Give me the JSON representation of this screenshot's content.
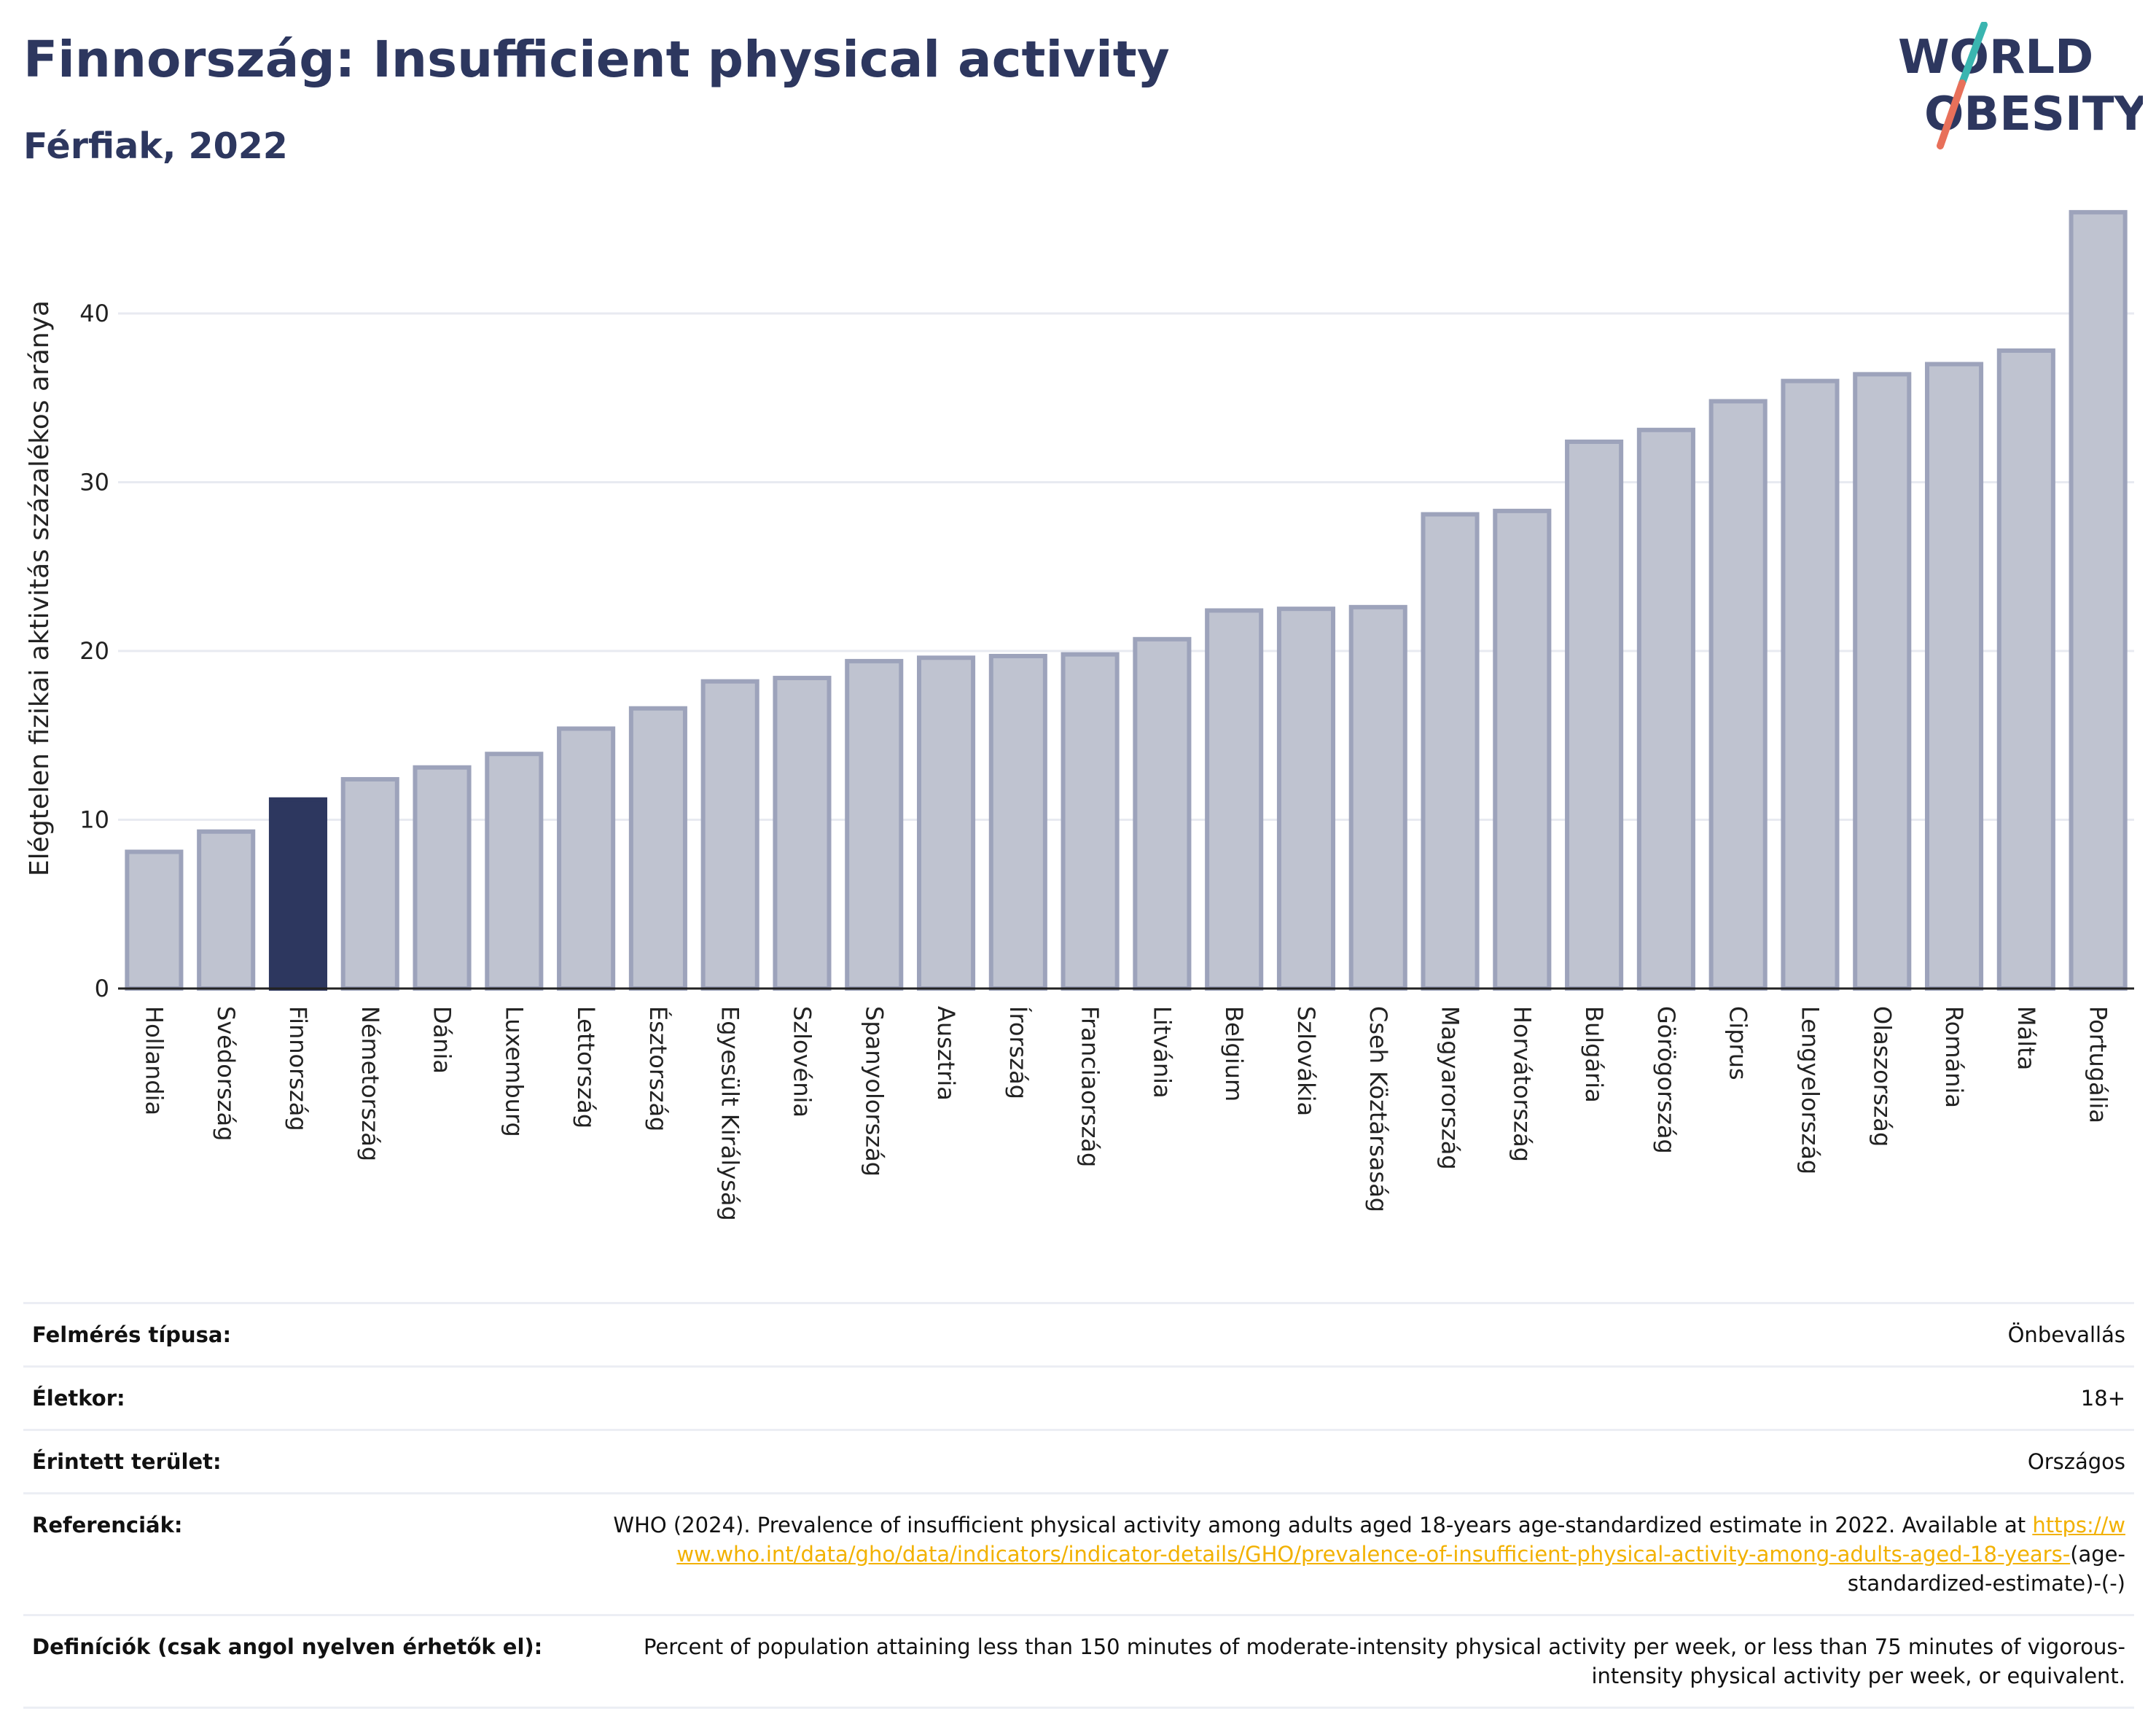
{
  "header": {
    "title": "Finnország: Insufficient physical activity",
    "subtitle": "Férfiak, 2022"
  },
  "logo": {
    "line1": "WORLD",
    "line2": "OBESITY",
    "colors": {
      "text": "#2d375f",
      "slash_top": "#3ab5b0",
      "slash_bottom": "#e8705a"
    }
  },
  "chart_data": {
    "type": "bar",
    "title": "",
    "xlabel": "",
    "ylabel": "Elégtelen fizikai aktivitás százalékos aránya",
    "ylim": [
      0,
      47
    ],
    "yticks": [
      0,
      10,
      20,
      30,
      40
    ],
    "grid": true,
    "highlight_category": "Finnország",
    "colors": {
      "bar": "#bfc3d0",
      "bar_edge": "#9da3bb",
      "highlight": "#2d375f",
      "grid": "#e8eaf1"
    },
    "categories": [
      "Hollandia",
      "Svédország",
      "Finnország",
      "Németország",
      "Dánia",
      "Luxemburg",
      "Lettország",
      "Észtország",
      "Egyesült Királyság",
      "Szlovénia",
      "Spanyolország",
      "Ausztria",
      "Írország",
      "Franciaország",
      "Litvánia",
      "Belgium",
      "Szlovákia",
      "Cseh Köztársaság",
      "Magyarország",
      "Horvátország",
      "Bulgária",
      "Görögország",
      "Ciprus",
      "Lengyelország",
      "Olaszország",
      "Románia",
      "Málta",
      "Portugália"
    ],
    "values": [
      8.1,
      9.3,
      11.2,
      12.4,
      13.1,
      13.9,
      15.4,
      16.6,
      18.2,
      18.4,
      19.4,
      19.6,
      19.7,
      19.8,
      20.7,
      22.4,
      22.5,
      22.6,
      28.1,
      28.3,
      32.4,
      33.1,
      34.8,
      36.0,
      36.4,
      37.0,
      37.8,
      46.0
    ]
  },
  "info": {
    "survey_label": "Felmérés típusa:",
    "survey_value": "Önbevallás",
    "age_label": "Életkor:",
    "age_value": "18+",
    "area_label": "Érintett terület:",
    "area_value": "Országos",
    "ref_label": "Referenciák:",
    "ref_text": "WHO (2024). Prevalence of insufficient physical activity among adults aged 18-years age-standardized estimate in 2022. Available at",
    "ref_link": "https://www.who.int/data/gho/data/indicators/indicator-details/GHO/prevalence-of-insufficient-physical-activity-among-adults-aged-18-years-",
    "ref_tail": "(age-standardized-estimate)-(-)",
    "def_label": "Definíciók (csak angol nyelven érhetők el):",
    "def_value": "Percent of population attaining less than 150 minutes of moderate-intensity physical activity per week, or less than 75 minutes of vigorous-intensity physical activity per week, or equivalent."
  }
}
